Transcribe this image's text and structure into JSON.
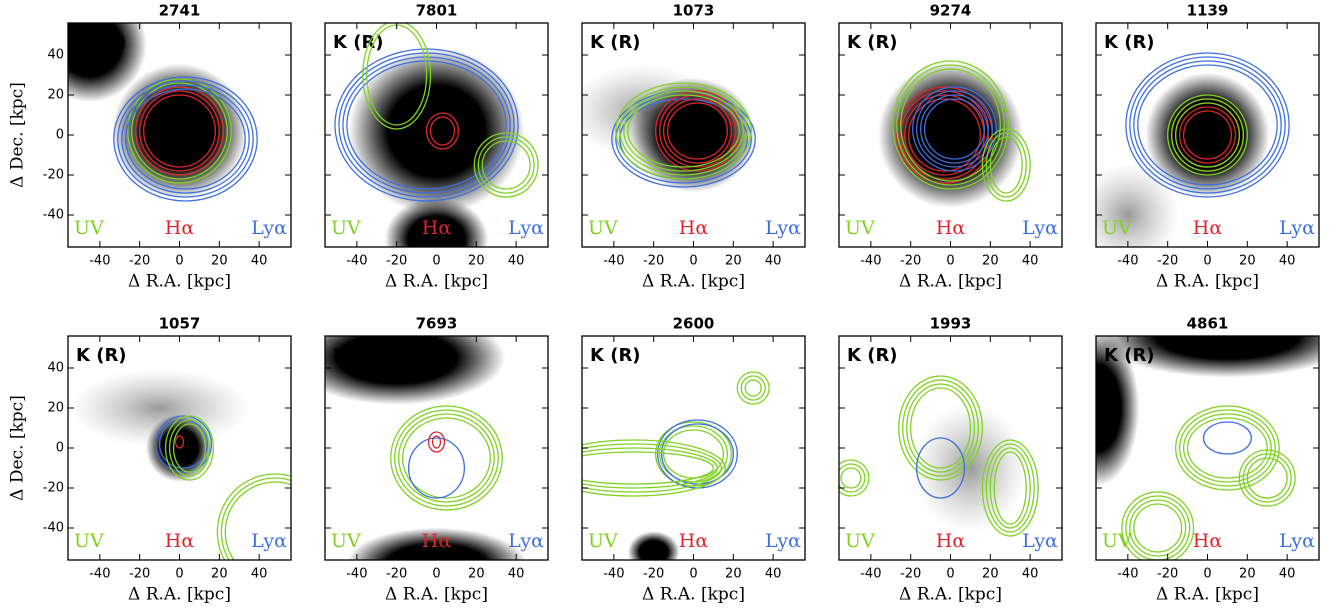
{
  "panels": [
    {
      "id": "2741"
    },
    {
      "id": "7801"
    },
    {
      "id": "1073"
    },
    {
      "id": "9274"
    },
    {
      "id": "1139"
    },
    {
      "id": "1057"
    },
    {
      "id": "7693"
    },
    {
      "id": "2600"
    },
    {
      "id": "1993"
    },
    {
      "id": "4861"
    }
  ],
  "band_label": "K (R)",
  "legend": {
    "uv": "UV",
    "ha": "Hα",
    "lya": "Lyα"
  },
  "x_axis": {
    "label": "Δ R.A. [kpc]",
    "ticks": [
      -40,
      -20,
      0,
      20,
      40
    ],
    "lim": [
      -56,
      56
    ]
  },
  "y_axis": {
    "label": "Δ Dec. [kpc]",
    "ticks": [
      -40,
      -20,
      0,
      20,
      40
    ],
    "lim": [
      -56,
      56
    ]
  }
}
